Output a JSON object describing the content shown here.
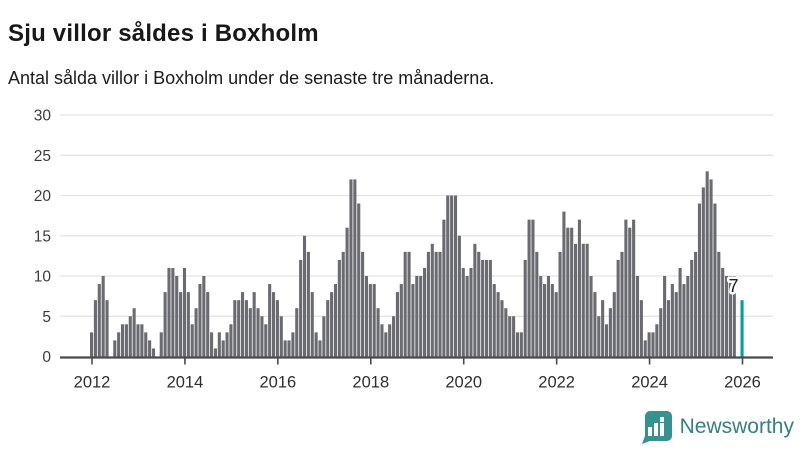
{
  "header": {
    "title": "Sju villor såldes i Boxholm",
    "subtitle": "Antal sålda villor i Boxholm under de senaste tre månaderna."
  },
  "chart_data": {
    "type": "bar",
    "title": "Sju villor såldes i Boxholm",
    "subtitle": "Antal sålda villor i Boxholm under de senaste tre månaderna.",
    "x_unit": "month",
    "x_start": "2012-01",
    "x_tick_years": [
      2012,
      2014,
      2016,
      2018,
      2020,
      2022,
      2024,
      2026
    ],
    "y_ticks": [
      0,
      5,
      10,
      15,
      20,
      25,
      30
    ],
    "ylim": [
      0,
      30
    ],
    "grid": true,
    "legend": false,
    "bar_color": "#6a6a71",
    "axis_color": "#4a4a4a",
    "grid_color": "#e3e3e3",
    "values_by_year": {
      "2012": [
        3,
        7,
        9,
        10,
        7,
        0,
        2,
        3,
        4,
        4,
        5,
        6
      ],
      "2013": [
        4,
        4,
        3,
        2,
        1,
        0,
        3,
        8,
        11,
        11,
        10,
        8
      ],
      "2014": [
        11,
        8,
        4,
        6,
        9,
        10,
        8,
        3,
        1,
        3,
        2,
        3
      ],
      "2015": [
        4,
        7,
        7,
        8,
        7,
        6,
        8,
        6,
        5,
        4,
        9,
        8
      ],
      "2016": [
        7,
        5,
        2,
        2,
        3,
        6,
        12,
        15,
        13,
        8,
        3,
        2
      ],
      "2017": [
        5,
        7,
        8,
        9,
        12,
        13,
        16,
        22,
        22,
        19,
        13,
        10
      ],
      "2018": [
        9,
        9,
        6,
        4,
        3,
        4,
        5,
        8,
        9,
        13,
        13,
        9
      ],
      "2019": [
        10,
        10,
        11,
        13,
        14,
        13,
        13,
        17,
        20,
        20,
        20,
        15
      ],
      "2020": [
        11,
        10,
        11,
        14,
        13,
        12,
        12,
        12,
        9,
        8,
        7,
        6
      ],
      "2021": [
        5,
        5,
        3,
        3,
        12,
        17,
        17,
        13,
        10,
        9,
        10,
        9
      ],
      "2022": [
        8,
        13,
        18,
        16,
        16,
        14,
        17,
        14,
        14,
        10,
        8,
        5
      ],
      "2023": [
        7,
        4,
        6,
        8,
        12,
        13,
        17,
        16,
        17,
        10,
        7,
        2
      ],
      "2024": [
        3,
        3,
        4,
        6,
        10,
        7,
        9,
        8,
        11,
        9,
        10,
        12
      ],
      "2025": [
        13,
        19,
        21,
        23,
        22,
        19,
        13,
        11,
        10,
        10,
        10,
        0
      ],
      "2026": [
        7
      ]
    },
    "highlight": {
      "year": 2026,
      "month_index": 0,
      "value": 7,
      "label": "7",
      "color": "#0c9b9d"
    }
  },
  "branding": {
    "logo_text": "Newsworthy",
    "logo_color": "#35817f",
    "logo_icon": "bar-chart-speech-bubble",
    "logo_icon_bg": "#37918f"
  }
}
